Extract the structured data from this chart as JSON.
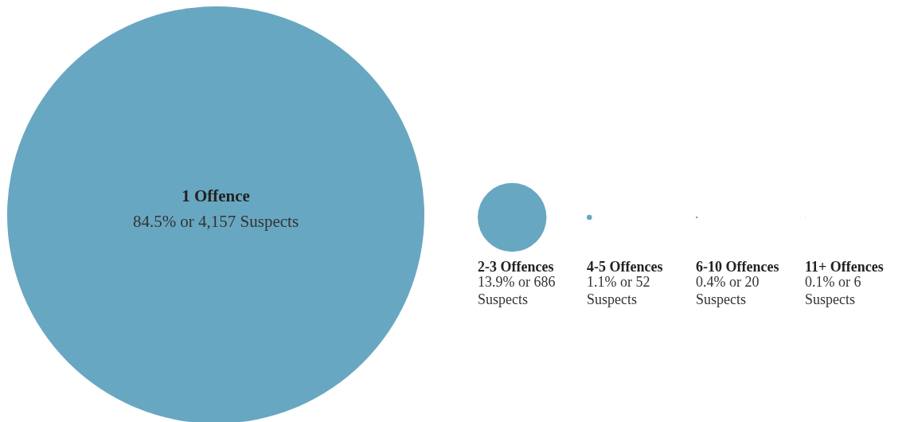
{
  "chart_data": {
    "type": "other",
    "categories": [
      "1 Offence",
      "2-3 Offences",
      "4-5 Offences",
      "6-10 Offences",
      "11+ Offences"
    ],
    "values": [
      4157,
      686,
      52,
      20,
      6
    ],
    "value_labels": [
      "84.5% or 4,157 Suspects",
      "13.9% or 686 Suspects",
      "1.1% or 52 Suspects",
      "0.4% or 20 Suspects",
      "0.1% or 6 Suspects"
    ],
    "color": "#68a7c1"
  }
}
